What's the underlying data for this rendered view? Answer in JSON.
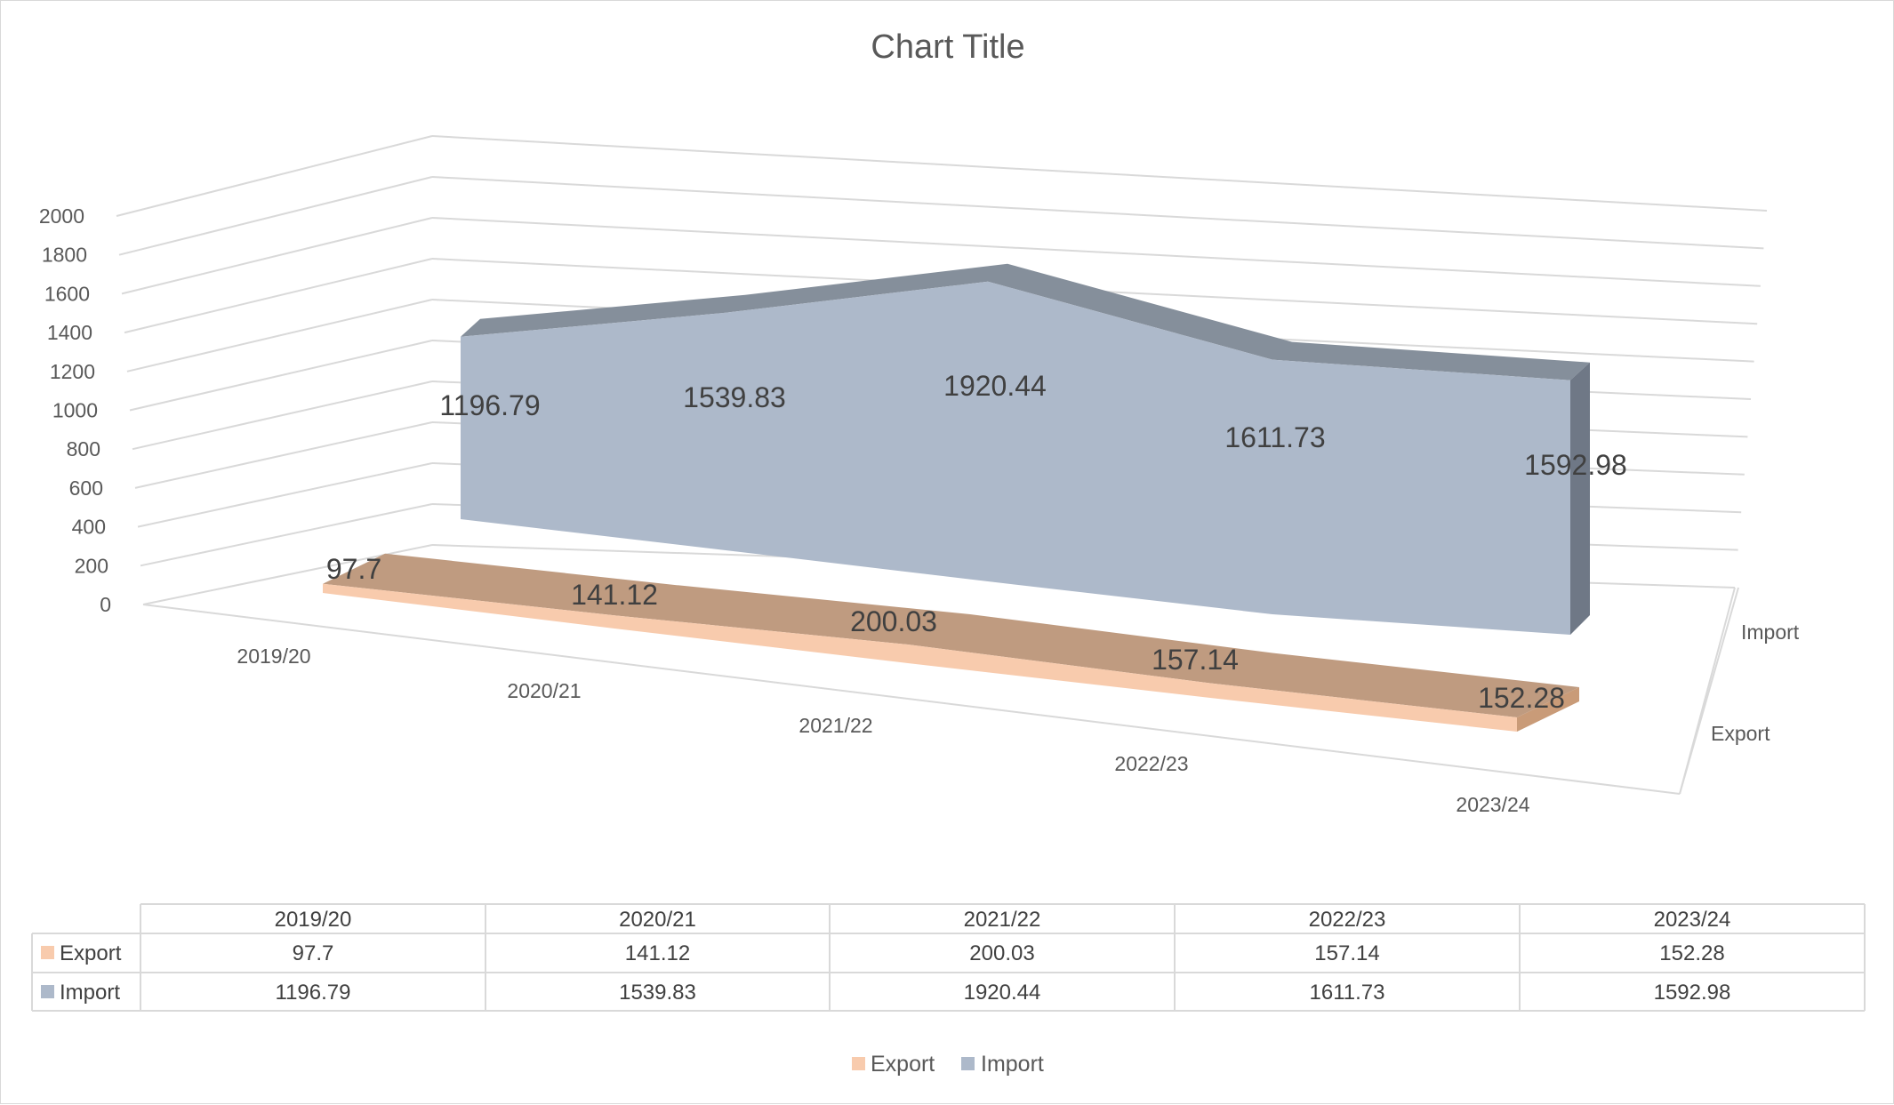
{
  "chart_data": {
    "type": "area",
    "view": "3d",
    "title": "Chart Title",
    "categories": [
      "2019/20",
      "2020/21",
      "2021/22",
      "2022/23",
      "2023/24"
    ],
    "series": [
      {
        "name": "Export",
        "values": [
          97.7,
          141.12,
          200.03,
          157.14,
          152.28
        ],
        "color": "#F8CBAD"
      },
      {
        "name": "Import",
        "values": [
          1196.79,
          1539.83,
          1920.44,
          1611.73,
          1592.98
        ],
        "color": "#ADB9CA"
      }
    ],
    "ylim": [
      0,
      2000
    ],
    "yticks": [
      "0",
      "200",
      "400",
      "600",
      "800",
      "1000",
      "1200",
      "1400",
      "1600",
      "1800",
      "2000"
    ],
    "depth_labels": [
      "Export",
      "Import"
    ],
    "grid": true,
    "data_labels": true,
    "data_table": true,
    "legend": "bottom"
  }
}
